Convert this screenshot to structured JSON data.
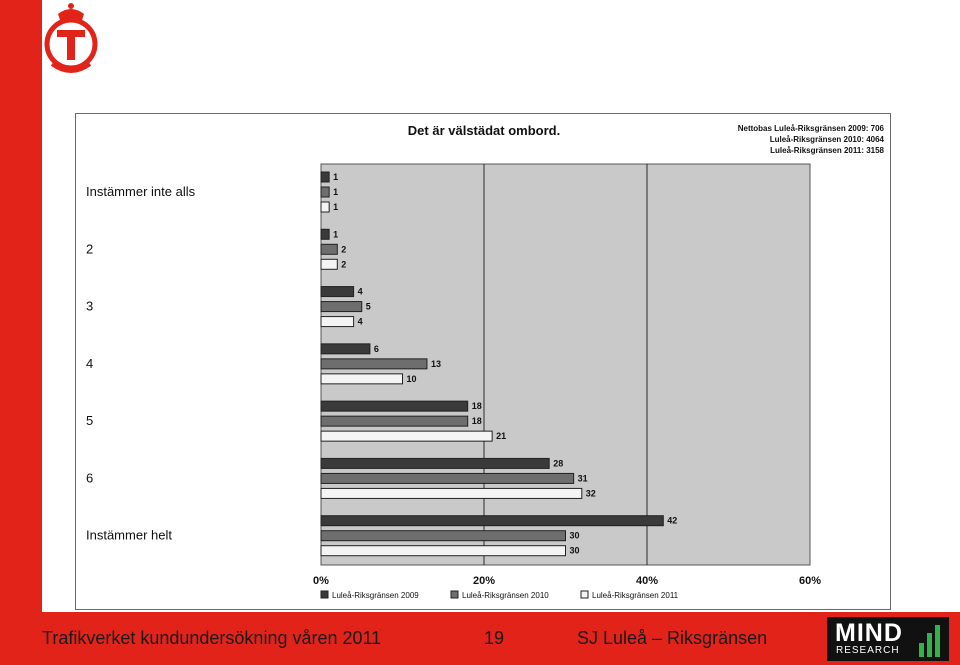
{
  "colors": {
    "accent_red": "#e2231a",
    "plot_bg": "#c9c9c9",
    "series_2009": "#3a3a3a",
    "series_2010": "#6e6e6e",
    "series_2011": "#f4f4f4",
    "mind_green": "#33b24a"
  },
  "header": {
    "logo_icon": "trafikverket-crown-t-icon"
  },
  "chart_data": {
    "type": "bar",
    "orientation": "horizontal",
    "title": "Det är välstädat ombord.",
    "note_lines": [
      "Nettobas  Luleå-Riksgränsen 2009: 706",
      "Luleå-Riksgränsen 2010: 4064",
      "Luleå-Riksgränsen 2011: 3158"
    ],
    "categories": [
      "Instämmer inte alls",
      "2",
      "3",
      "4",
      "5",
      "6",
      "Instämmer helt"
    ],
    "series": [
      {
        "name": "Luleå-Riksgränsen 2009",
        "values": [
          1,
          1,
          4,
          6,
          18,
          28,
          42
        ]
      },
      {
        "name": "Luleå-Riksgränsen 2010",
        "values": [
          1,
          2,
          5,
          13,
          18,
          31,
          30
        ]
      },
      {
        "name": "Luleå-Riksgränsen 2011",
        "values": [
          1,
          2,
          4,
          10,
          21,
          32,
          30
        ]
      }
    ],
    "xlim": [
      0,
      60
    ],
    "xticks": [
      0,
      20,
      40,
      60
    ],
    "xtick_labels": [
      "0%",
      "20%",
      "40%",
      "60%"
    ],
    "grid": true,
    "legend_position": "bottom"
  },
  "footer": {
    "left": "Trafikverket kundundersökning våren 2011",
    "page": "19",
    "right": "SJ Luleå – Riksgränsen",
    "brand_word": "MIND",
    "brand_sub": "RESEARCH"
  }
}
